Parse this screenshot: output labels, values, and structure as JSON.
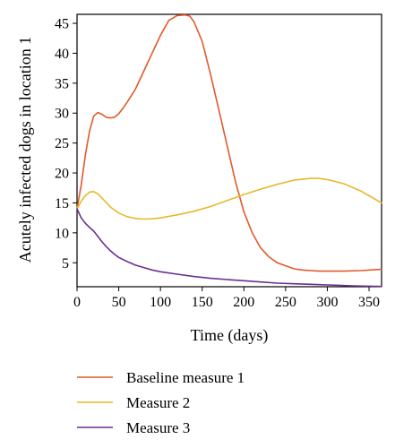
{
  "chart_data": {
    "type": "line",
    "xlabel": "Time (days)",
    "ylabel": "Acutely infected dogs in location 1",
    "xlim": [
      0,
      365
    ],
    "ylim": [
      1,
      46.5
    ],
    "xticks": [
      0,
      50,
      100,
      150,
      200,
      250,
      300,
      350
    ],
    "yticks": [
      5,
      10,
      15,
      20,
      25,
      30,
      35,
      40,
      45
    ],
    "grid": false,
    "legend_position": "below",
    "series": [
      {
        "name": "Baseline measure 1",
        "color": "#e05a2b",
        "x": [
          0,
          5,
          10,
          15,
          20,
          25,
          30,
          35,
          40,
          45,
          50,
          55,
          60,
          70,
          80,
          90,
          100,
          110,
          120,
          130,
          135,
          140,
          150,
          160,
          170,
          180,
          190,
          200,
          210,
          220,
          230,
          240,
          250,
          260,
          270,
          280,
          290,
          300,
          320,
          340,
          365
        ],
        "y": [
          14,
          18,
          23,
          27,
          29.5,
          30.1,
          29.8,
          29.3,
          29.2,
          29.3,
          29.9,
          30.8,
          31.8,
          34,
          37,
          40,
          43,
          45.5,
          46.3,
          46.4,
          46.2,
          45.3,
          42,
          36.5,
          30.5,
          24.5,
          18.5,
          13.5,
          10,
          7.5,
          6,
          5,
          4.5,
          4,
          3.8,
          3.7,
          3.6,
          3.6,
          3.6,
          3.7,
          3.9
        ]
      },
      {
        "name": "Measure 2",
        "color": "#e8b82b",
        "x": [
          0,
          5,
          10,
          15,
          20,
          25,
          30,
          40,
          50,
          60,
          70,
          80,
          90,
          100,
          120,
          140,
          160,
          180,
          200,
          220,
          240,
          260,
          280,
          290,
          300,
          320,
          340,
          365
        ],
        "y": [
          14,
          15.3,
          16.2,
          16.8,
          16.9,
          16.5,
          15.8,
          14.3,
          13.3,
          12.7,
          12.4,
          12.3,
          12.35,
          12.5,
          13,
          13.6,
          14.4,
          15.4,
          16.4,
          17.3,
          18.1,
          18.8,
          19.1,
          19.1,
          18.9,
          18.2,
          17,
          15
        ]
      },
      {
        "name": "Measure 3",
        "color": "#6b2f8f",
        "x": [
          0,
          5,
          10,
          15,
          20,
          25,
          30,
          35,
          40,
          45,
          50,
          60,
          70,
          80,
          90,
          100,
          120,
          140,
          160,
          180,
          200,
          220,
          240,
          260,
          280,
          300,
          330,
          365
        ],
        "y": [
          14,
          12.5,
          11.6,
          10.9,
          10.3,
          9.4,
          8.5,
          7.7,
          7,
          6.4,
          5.9,
          5.2,
          4.6,
          4.2,
          3.8,
          3.5,
          3.1,
          2.7,
          2.4,
          2.2,
          2,
          1.8,
          1.6,
          1.5,
          1.4,
          1.3,
          1.15,
          1.05
        ]
      }
    ]
  }
}
